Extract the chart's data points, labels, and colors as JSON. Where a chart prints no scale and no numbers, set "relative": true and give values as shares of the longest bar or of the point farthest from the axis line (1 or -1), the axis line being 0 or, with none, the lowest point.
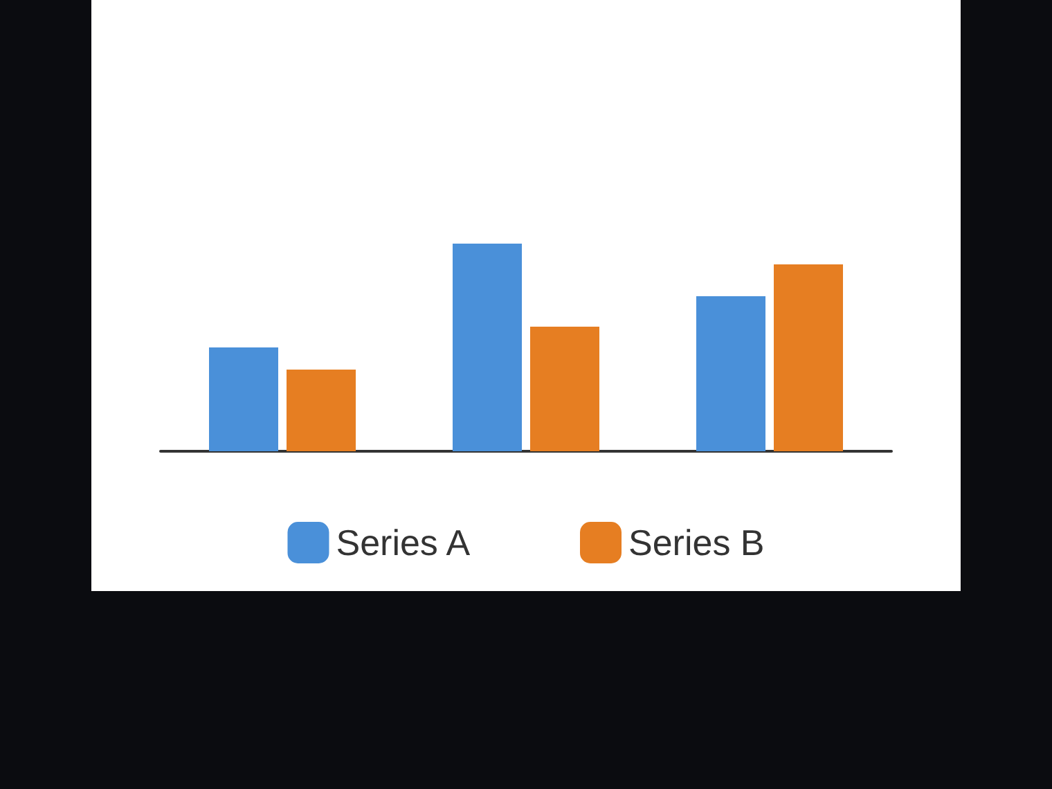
{
  "chart_data": {
    "type": "bar",
    "relative": true,
    "categories": [
      null,
      null,
      null
    ],
    "legend": "bottom",
    "grid": false,
    "series": [
      {
        "name": "Series A",
        "color": "#4a90d9",
        "values": [
          0.5,
          1,
          0.747
        ]
      },
      {
        "name": "Series B",
        "color": "#e67e22",
        "values": [
          0.393,
          0.6,
          0.9
        ]
      }
    ]
  }
}
